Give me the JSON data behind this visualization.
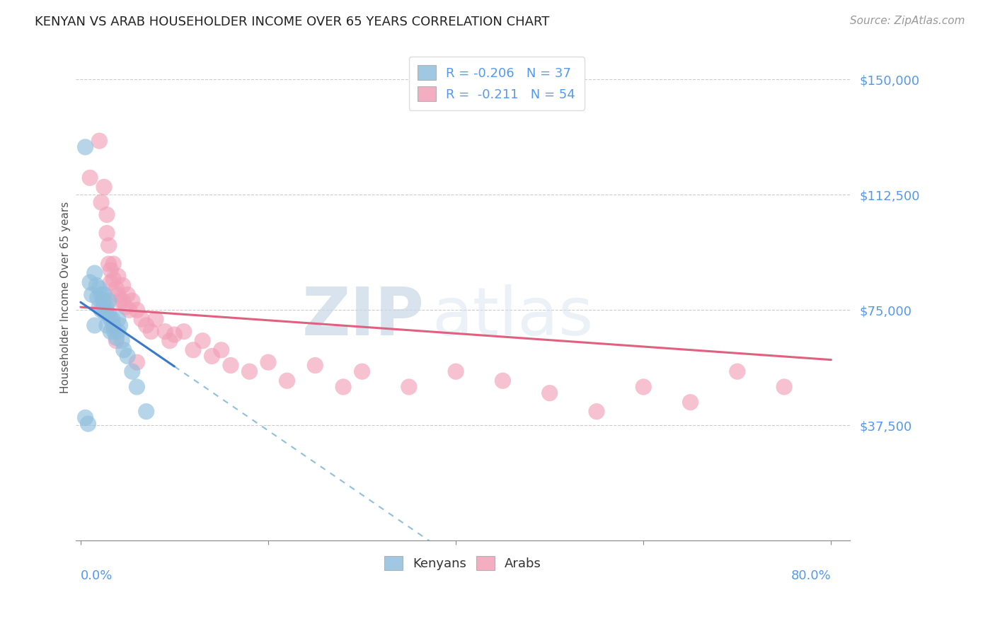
{
  "title": "KENYAN VS ARAB HOUSEHOLDER INCOME OVER 65 YEARS CORRELATION CHART",
  "source": "Source: ZipAtlas.com",
  "ylabel": "Householder Income Over 65 years",
  "xlim": [
    -0.005,
    0.82
  ],
  "ylim": [
    0,
    158000
  ],
  "ytick_vals": [
    37500,
    75000,
    112500,
    150000
  ],
  "ytick_labels": [
    "$37,500",
    "$75,000",
    "$112,500",
    "$150,000"
  ],
  "kenyan_color": "#90bfde",
  "arab_color": "#f2a0b8",
  "kenyan_line_color": "#3a78c9",
  "kenyan_dash_color": "#90bfde",
  "arab_line_color": "#e06080",
  "legend_R_kenyan": "-0.206",
  "legend_N_kenyan": "37",
  "legend_R_arab": "-0.211",
  "legend_N_arab": "54",
  "kenyan_R": -0.206,
  "arab_R": -0.211,
  "kenyan_x": [
    0.005,
    0.01,
    0.012,
    0.015,
    0.017,
    0.018,
    0.02,
    0.02,
    0.022,
    0.022,
    0.024,
    0.025,
    0.025,
    0.026,
    0.027,
    0.028,
    0.028,
    0.03,
    0.03,
    0.032,
    0.032,
    0.034,
    0.035,
    0.036,
    0.038,
    0.04,
    0.04,
    0.042,
    0.044,
    0.046,
    0.05,
    0.055,
    0.06,
    0.07,
    0.005,
    0.008,
    0.015
  ],
  "kenyan_y": [
    128000,
    84000,
    80000,
    87000,
    83000,
    79000,
    82000,
    76000,
    80000,
    75000,
    78000,
    80000,
    76000,
    74000,
    76000,
    74000,
    70000,
    78000,
    74000,
    72000,
    68000,
    72000,
    70000,
    68000,
    66000,
    72000,
    68000,
    70000,
    65000,
    62000,
    60000,
    55000,
    50000,
    42000,
    40000,
    38000,
    70000
  ],
  "arab_x": [
    0.01,
    0.02,
    0.022,
    0.025,
    0.028,
    0.028,
    0.03,
    0.03,
    0.032,
    0.032,
    0.035,
    0.035,
    0.038,
    0.04,
    0.04,
    0.042,
    0.045,
    0.045,
    0.048,
    0.05,
    0.052,
    0.055,
    0.06,
    0.065,
    0.07,
    0.075,
    0.08,
    0.09,
    0.095,
    0.1,
    0.11,
    0.12,
    0.13,
    0.14,
    0.15,
    0.16,
    0.18,
    0.2,
    0.22,
    0.25,
    0.28,
    0.3,
    0.35,
    0.4,
    0.45,
    0.5,
    0.55,
    0.6,
    0.65,
    0.7,
    0.75,
    0.025,
    0.038,
    0.06
  ],
  "arab_y": [
    118000,
    130000,
    110000,
    115000,
    106000,
    100000,
    96000,
    90000,
    88000,
    84000,
    90000,
    85000,
    82000,
    86000,
    80000,
    78000,
    83000,
    78000,
    76000,
    80000,
    75000,
    78000,
    75000,
    72000,
    70000,
    68000,
    72000,
    68000,
    65000,
    67000,
    68000,
    62000,
    65000,
    60000,
    62000,
    57000,
    55000,
    58000,
    52000,
    57000,
    50000,
    55000,
    50000,
    55000,
    52000,
    48000,
    42000,
    50000,
    45000,
    55000,
    50000,
    78000,
    65000,
    58000
  ]
}
